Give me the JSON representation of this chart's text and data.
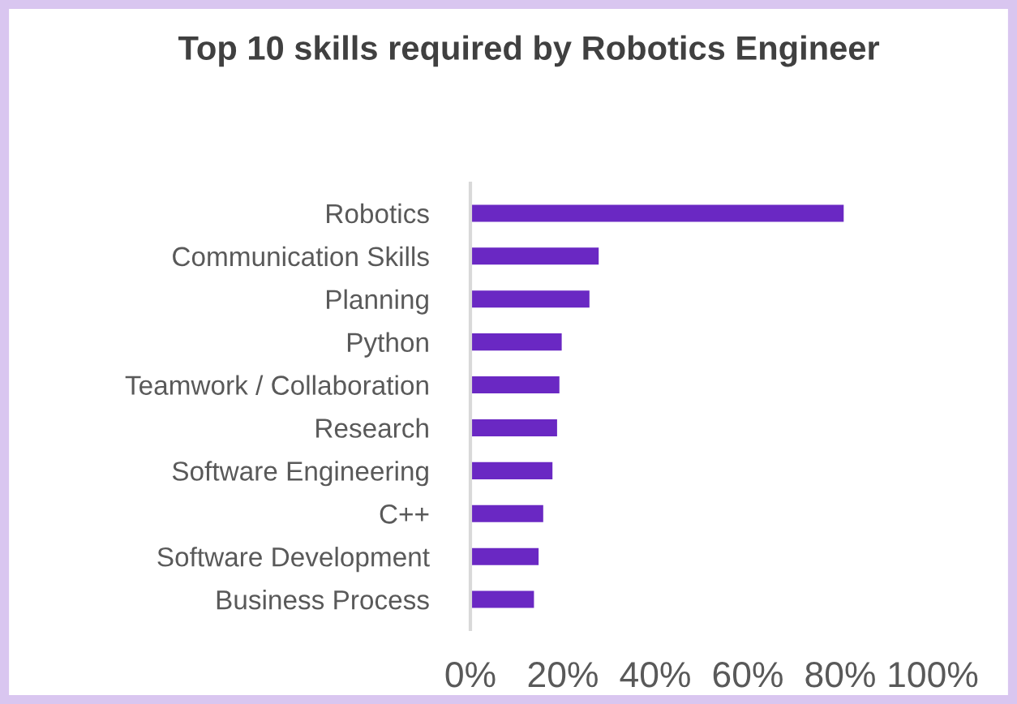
{
  "chart_data": {
    "type": "bar",
    "orientation": "horizontal",
    "title": "Top 10 skills required by Robotics Engineer",
    "categories": [
      "Robotics",
      "Communication Skills",
      "Planning",
      "Python",
      "Teamwork / Collaboration",
      "Research",
      "Software Engineering",
      "C++",
      "Software Development",
      "Business Process"
    ],
    "values": [
      81,
      28,
      26,
      20,
      19.5,
      19,
      18,
      16,
      15,
      14
    ],
    "color": "#6a28c3",
    "xlim": [
      0,
      100
    ],
    "xticks": [
      {
        "value": 0,
        "label": "0%"
      },
      {
        "value": 20,
        "label": "20%"
      },
      {
        "value": 40,
        "label": "40%"
      },
      {
        "value": 60,
        "label": "60%"
      },
      {
        "value": 80,
        "label": "80%"
      },
      {
        "value": 100,
        "label": "100%"
      }
    ],
    "grid": false,
    "legend": false
  }
}
